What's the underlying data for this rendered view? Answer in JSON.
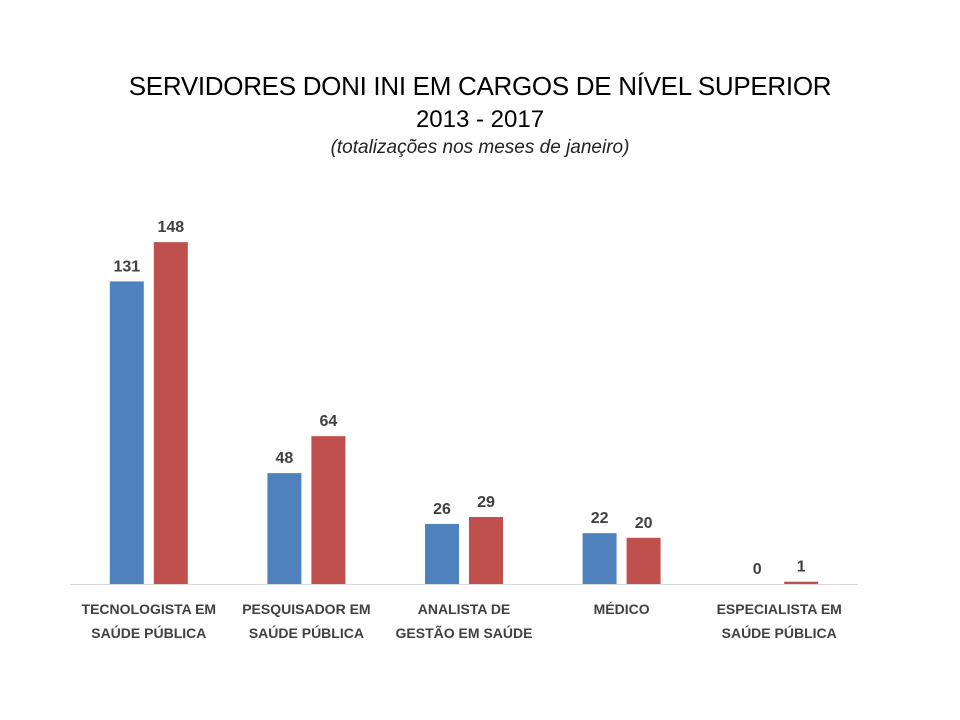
{
  "chart_data": {
    "type": "bar",
    "title": "SERVIDORES DONI INI EM CARGOS DE NÍVEL SUPERIOR",
    "subtitle": "2013 - 2017",
    "note": "(totalizações nos meses de janeiro)",
    "categories": [
      [
        "TECNOLOGISTA EM",
        "SAÚDE PÚBLICA"
      ],
      [
        "PESQUISADOR EM",
        "SAÚDE PÚBLICA"
      ],
      [
        "ANALISTA DE",
        "GESTÃO EM SAÚDE"
      ],
      [
        "MÉDICO"
      ],
      [
        "ESPECIALISTA EM",
        "SAÚDE PÚBLICA"
      ]
    ],
    "series": [
      {
        "values": [
          131,
          48,
          26,
          22,
          0
        ],
        "color": "#4f81bd"
      },
      {
        "values": [
          148,
          64,
          29,
          20,
          1
        ],
        "color": "#c0504d"
      }
    ],
    "ylim": [
      0,
      160
    ],
    "grid": false,
    "legend": "none"
  }
}
